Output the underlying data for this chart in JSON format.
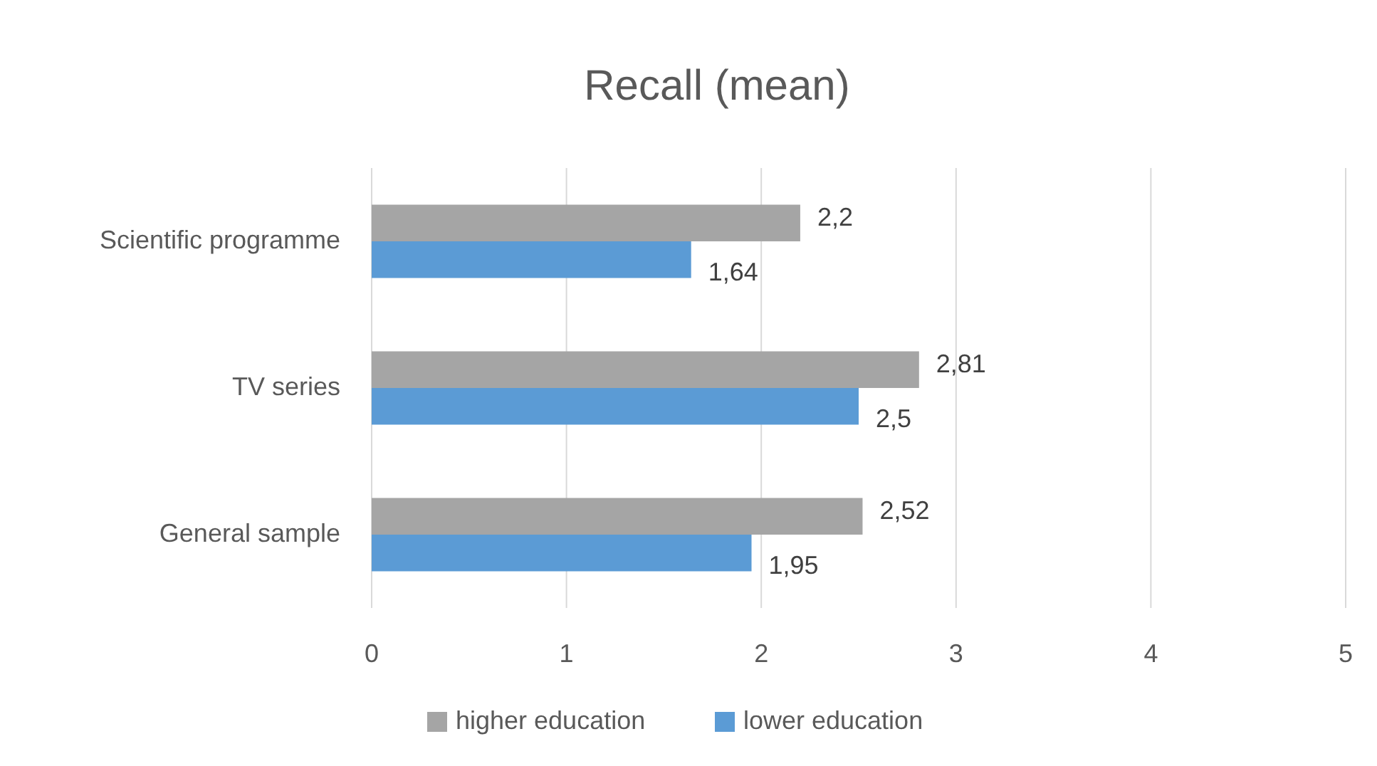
{
  "chart_data": {
    "type": "bar",
    "orientation": "horizontal",
    "title": "Recall (mean)",
    "categories": [
      "Scientific programme",
      "TV series",
      "General sample"
    ],
    "series": [
      {
        "name": "higher education",
        "color": "#a5a5a5",
        "values": [
          2.2,
          2.81,
          2.52
        ],
        "value_labels": [
          "2,2",
          "2,81",
          "2,52"
        ]
      },
      {
        "name": "lower education",
        "color": "#5b9bd5",
        "values": [
          1.64,
          2.5,
          1.95
        ],
        "value_labels": [
          "1,64",
          "2,5",
          "1,95"
        ]
      }
    ],
    "xlim": [
      0,
      5
    ],
    "xticks": [
      0,
      1,
      2,
      3,
      4,
      5
    ],
    "grid": "x",
    "legend": "bottom"
  }
}
